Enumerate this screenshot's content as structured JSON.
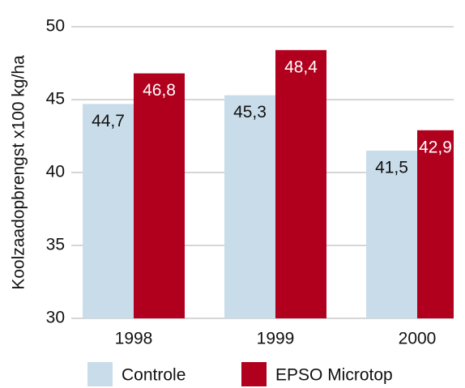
{
  "chart_data": {
    "type": "bar",
    "y_label": "Koolzaadopbrengst x100 kg/ha",
    "categories": [
      "1998",
      "1999",
      "2000"
    ],
    "series": [
      {
        "name": "Controle",
        "color": "#c9dcea",
        "values": [
          44.7,
          45.3,
          41.5
        ],
        "value_labels": [
          "44,7",
          "45,3",
          "41,5"
        ]
      },
      {
        "name": "EPSO Microtop",
        "color": "#b0001e",
        "values": [
          46.8,
          48.4,
          42.9
        ],
        "value_labels": [
          "46,8",
          "48,4",
          "42,9"
        ]
      }
    ],
    "ylim": [
      30,
      50
    ],
    "yticks": [
      30,
      35,
      40,
      45,
      50
    ],
    "grid": true
  }
}
